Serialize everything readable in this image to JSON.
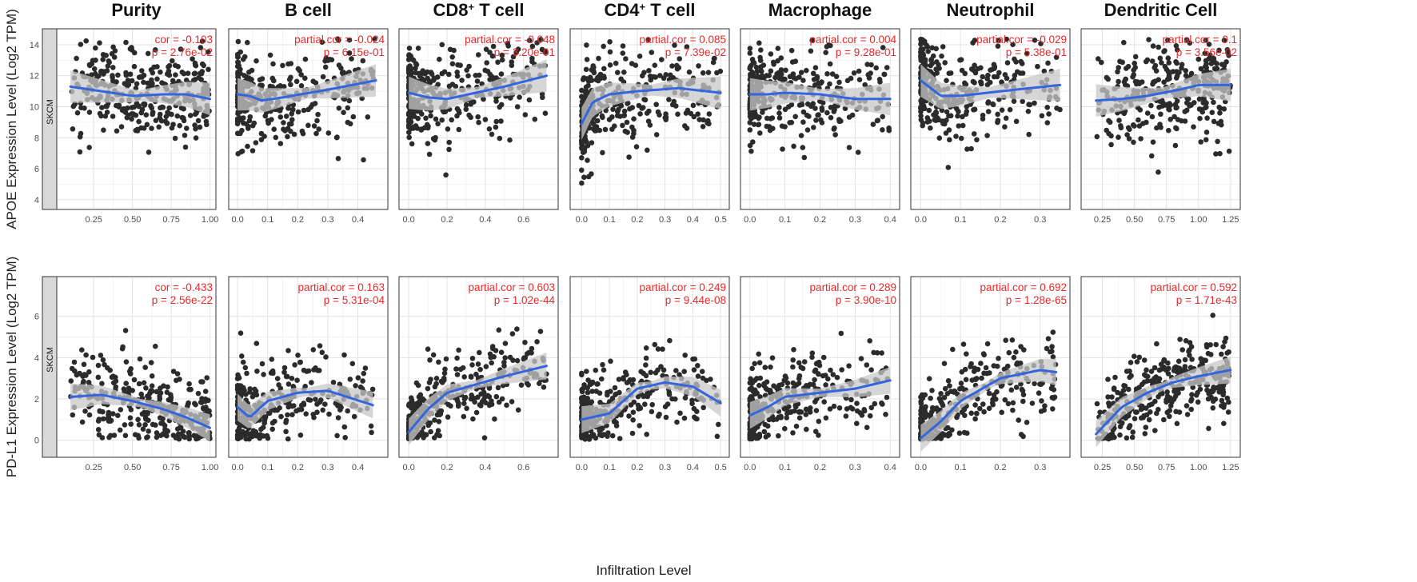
{
  "chart_data": {
    "type": "scatter",
    "cancer_type": "SKCM",
    "xlabel": "Infiltration Level",
    "colors": {
      "point": "#2b2b2b",
      "fit": "#3366dd",
      "band": "#c8c8c8",
      "stat": "#e32b2b",
      "strip": "#d9d9d9"
    },
    "columns": [
      {
        "title": "Purity",
        "sup": null,
        "xlim": [
          0.05,
          1.0
        ],
        "xticks": [
          0.25,
          0.5,
          0.75,
          1.0
        ],
        "xtick_labels": [
          "0.25",
          "0.50",
          "0.75",
          "1.00"
        ]
      },
      {
        "title": "B cell",
        "sup": null,
        "xlim": [
          -0.01,
          0.48
        ],
        "xticks": [
          0.0,
          0.1,
          0.2,
          0.3,
          0.4
        ],
        "xtick_labels": [
          "0.0",
          "0.1",
          "0.2",
          "0.3",
          "0.4"
        ]
      },
      {
        "title": "CD8",
        "sup": "+",
        "suffix": " T cell",
        "xlim": [
          -0.02,
          0.75
        ],
        "xticks": [
          0.0,
          0.2,
          0.4,
          0.6
        ],
        "xtick_labels": [
          "0.0",
          "0.2",
          "0.4",
          "0.6"
        ]
      },
      {
        "title": "CD4",
        "sup": "+",
        "suffix": " T cell",
        "xlim": [
          -0.02,
          0.51
        ],
        "xticks": [
          0.0,
          0.1,
          0.2,
          0.3,
          0.4,
          0.5
        ],
        "xtick_labels": [
          "0.0",
          "0.1",
          "0.2",
          "0.3",
          "0.4",
          "0.5"
        ]
      },
      {
        "title": "Macrophage",
        "sup": null,
        "xlim": [
          -0.01,
          0.41
        ],
        "xticks": [
          0.0,
          0.1,
          0.2,
          0.3,
          0.4
        ],
        "xtick_labels": [
          "0.0",
          "0.1",
          "0.2",
          "0.3",
          "0.4"
        ]
      },
      {
        "title": "Neutrophil",
        "sup": null,
        "xlim": [
          -0.01,
          0.36
        ],
        "xticks": [
          0.0,
          0.1,
          0.2,
          0.3
        ],
        "xtick_labels": [
          "0.0",
          "0.1",
          "0.2",
          "0.3"
        ]
      },
      {
        "title": "Dendritic Cell",
        "sup": null,
        "xlim": [
          0.13,
          1.28
        ],
        "xticks": [
          0.25,
          0.5,
          0.75,
          1.0,
          1.25
        ],
        "xtick_labels": [
          "0.25",
          "0.50",
          "0.75",
          "1.00",
          "1.25"
        ]
      }
    ],
    "rows": [
      {
        "gene": "APOE",
        "ylabel": "APOE Expression Level (Log2 TPM)",
        "ylim": [
          3.8,
          14.6
        ],
        "yticks": [
          4,
          6,
          8,
          10,
          12,
          14
        ],
        "ytick_labels": [
          "4",
          "6",
          "8",
          "10",
          "12",
          "14"
        ],
        "y_center": 10.6,
        "y_spread": 1.5,
        "stats": [
          {
            "label": "cor = -0.103",
            "p": "p = 2.76e-02"
          },
          {
            "label": "partial.cor = -0.024",
            "p": "p = 6.15e-01"
          },
          {
            "label": "partial.cor = -0.048",
            "p": "p = 3.20e-01"
          },
          {
            "label": "partial.cor = 0.085",
            "p": "p = 7.39e-02"
          },
          {
            "label": "partial.cor = 0.004",
            "p": "p = 9.28e-01"
          },
          {
            "label": "partial.cor = -0.029",
            "p": "p = 5.38e-01"
          },
          {
            "label": "partial.cor = 0.1",
            "p": "p = 3.56e-02"
          }
        ],
        "fits": [
          {
            "x": [
              0.1,
              0.3,
              0.5,
              0.7,
              0.85,
              1.0
            ],
            "y": [
              11.3,
              11.0,
              10.7,
              10.8,
              10.8,
              10.5
            ]
          },
          {
            "x": [
              0.0,
              0.04,
              0.08,
              0.15,
              0.3,
              0.46
            ],
            "y": [
              10.8,
              10.7,
              10.4,
              10.6,
              11.1,
              11.7
            ]
          },
          {
            "x": [
              0.0,
              0.1,
              0.2,
              0.35,
              0.5,
              0.72
            ],
            "y": [
              10.9,
              10.6,
              10.5,
              10.9,
              11.3,
              12.0
            ]
          },
          {
            "x": [
              0.0,
              0.04,
              0.1,
              0.2,
              0.35,
              0.5
            ],
            "y": [
              8.9,
              10.3,
              10.8,
              11.0,
              11.2,
              10.9
            ]
          },
          {
            "x": [
              0.0,
              0.05,
              0.1,
              0.2,
              0.3,
              0.4
            ],
            "y": [
              10.8,
              10.8,
              10.9,
              10.8,
              10.5,
              10.5
            ]
          },
          {
            "x": [
              0.0,
              0.05,
              0.1,
              0.2,
              0.35
            ],
            "y": [
              11.7,
              10.7,
              10.7,
              11.0,
              11.4
            ]
          },
          {
            "x": [
              0.2,
              0.4,
              0.6,
              0.85,
              1.0,
              1.25
            ],
            "y": [
              10.4,
              10.5,
              10.7,
              11.1,
              11.4,
              11.4
            ]
          }
        ]
      },
      {
        "gene": "PD-L1",
        "ylabel": "PD-L1 Expression Level (Log2 TPM)",
        "ylim": [
          -0.5,
          7.6
        ],
        "yticks": [
          0,
          2,
          4,
          6
        ],
        "ytick_labels": [
          "0",
          "2",
          "4",
          "6"
        ],
        "y_center": 1.5,
        "y_spread": 1.2,
        "stats": [
          {
            "label": "cor = -0.433",
            "p": "p = 2.56e-22"
          },
          {
            "label": "partial.cor = 0.163",
            "p": "p = 5.31e-04"
          },
          {
            "label": "partial.cor = 0.603",
            "p": "p = 1.02e-44"
          },
          {
            "label": "partial.cor = 0.249",
            "p": "p = 9.44e-08"
          },
          {
            "label": "partial.cor = 0.289",
            "p": "p = 3.90e-10"
          },
          {
            "label": "partial.cor = 0.692",
            "p": "p = 1.28e-65"
          },
          {
            "label": "partial.cor = 0.592",
            "p": "p = 1.71e-43"
          }
        ],
        "fits": [
          {
            "x": [
              0.1,
              0.3,
              0.5,
              0.7,
              0.85,
              1.0
            ],
            "y": [
              2.1,
              2.2,
              1.9,
              1.5,
              1.1,
              0.6
            ]
          },
          {
            "x": [
              0.0,
              0.04,
              0.1,
              0.2,
              0.3,
              0.45
            ],
            "y": [
              1.6,
              1.1,
              1.9,
              2.3,
              2.4,
              1.7
            ]
          },
          {
            "x": [
              0.0,
              0.1,
              0.2,
              0.35,
              0.5,
              0.72
            ],
            "y": [
              0.4,
              1.5,
              2.3,
              2.7,
              3.1,
              3.6
            ]
          },
          {
            "x": [
              0.0,
              0.1,
              0.2,
              0.3,
              0.4,
              0.5
            ],
            "y": [
              1.0,
              1.3,
              2.5,
              2.8,
              2.6,
              1.8
            ]
          },
          {
            "x": [
              0.0,
              0.05,
              0.1,
              0.2,
              0.3,
              0.4
            ],
            "y": [
              1.2,
              1.6,
              2.1,
              2.3,
              2.5,
              2.9
            ]
          },
          {
            "x": [
              0.0,
              0.05,
              0.1,
              0.2,
              0.3,
              0.34
            ],
            "y": [
              0.1,
              0.9,
              1.9,
              3.0,
              3.4,
              3.3
            ]
          },
          {
            "x": [
              0.2,
              0.4,
              0.6,
              0.8,
              1.0,
              1.25
            ],
            "y": [
              0.3,
              1.6,
              2.3,
              2.8,
              3.1,
              3.4
            ]
          }
        ]
      }
    ]
  }
}
